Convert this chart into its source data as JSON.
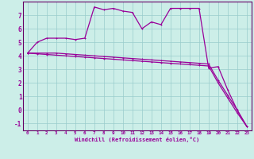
{
  "bg_color": "#cceee8",
  "grid_color": "#99cccc",
  "line_color": "#990099",
  "spine_color": "#660066",
  "xlim": [
    -0.5,
    23.5
  ],
  "ylim": [
    -1.5,
    8.0
  ],
  "yticks": [
    -1,
    0,
    1,
    2,
    3,
    4,
    5,
    6,
    7
  ],
  "xticks": [
    0,
    1,
    2,
    3,
    4,
    5,
    6,
    7,
    8,
    9,
    10,
    11,
    12,
    13,
    14,
    15,
    16,
    17,
    18,
    19,
    20,
    21,
    22,
    23
  ],
  "xlabel": "Windchill (Refroidissement éolien,°C)",
  "line1_x": [
    0,
    1,
    2,
    3,
    4,
    5,
    6,
    7,
    8,
    9,
    10,
    11,
    12,
    13,
    14,
    15,
    16,
    17,
    18,
    19,
    20,
    21,
    22,
    23
  ],
  "line1_y": [
    4.2,
    5.0,
    5.3,
    5.3,
    5.3,
    5.2,
    5.3,
    7.6,
    7.4,
    7.5,
    7.3,
    7.2,
    6.0,
    6.5,
    6.3,
    7.5,
    7.5,
    7.5,
    7.5,
    3.1,
    3.2,
    1.5,
    0.0,
    -1.2
  ],
  "line2_x": [
    0,
    1,
    2,
    3,
    4,
    5,
    6,
    7,
    8,
    9,
    10,
    11,
    12,
    13,
    14,
    15,
    16,
    17,
    18,
    19,
    20,
    21,
    22,
    23
  ],
  "line2_y": [
    4.2,
    4.15,
    4.1,
    4.05,
    4.0,
    3.95,
    3.9,
    3.85,
    3.8,
    3.75,
    3.7,
    3.65,
    3.6,
    3.55,
    3.5,
    3.45,
    3.4,
    3.35,
    3.3,
    3.25,
    2.0,
    0.9,
    -0.2,
    -1.2
  ],
  "line3_x": [
    0,
    1,
    2,
    3,
    4,
    5,
    6,
    7,
    8,
    9,
    10,
    11,
    12,
    13,
    14,
    15,
    16,
    17,
    18,
    19,
    20,
    21,
    22,
    23
  ],
  "line3_y": [
    4.2,
    4.2,
    4.2,
    4.2,
    4.15,
    4.1,
    4.05,
    4.0,
    3.95,
    3.9,
    3.85,
    3.8,
    3.75,
    3.7,
    3.65,
    3.6,
    3.55,
    3.5,
    3.45,
    3.4,
    2.2,
    1.1,
    0.0,
    -1.2
  ]
}
